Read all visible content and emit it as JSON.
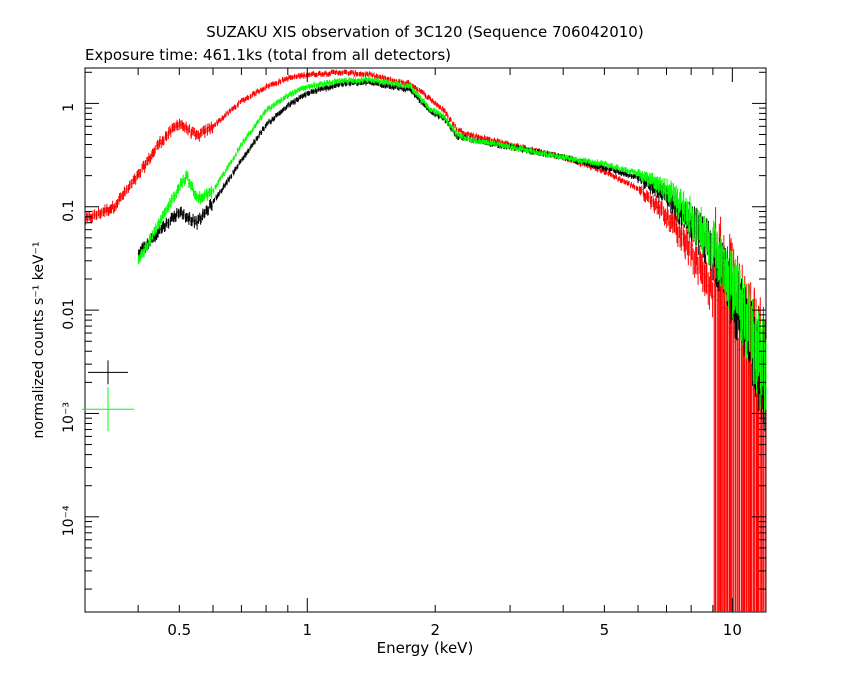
{
  "chart_data": {
    "type": "scatter",
    "title": "SUZAKU XIS observation of 3C120 (Sequence 706042010)",
    "subtitle": "Exposure time: 461.1ks (total from all detectors)",
    "xlabel": "Energy (keV)",
    "ylabel": "normalized counts s⁻¹ keV⁻¹",
    "x_scale": "log",
    "y_scale": "log",
    "xlim": [
      0.3,
      12
    ],
    "ylim": [
      1.2e-05,
      2.2
    ],
    "x_ticks": [
      0.5,
      1,
      2,
      5,
      10
    ],
    "x_tick_labels": [
      "0.5",
      "1",
      "2",
      "5",
      "10"
    ],
    "y_ticks": [
      0.0001,
      0.001,
      0.01,
      0.1,
      1
    ],
    "y_tick_labels": [
      "10⁻⁴",
      "10⁻³",
      "0.01",
      "0.1",
      "1"
    ],
    "grid": false,
    "legend": "error-bar markers at left",
    "series": [
      {
        "color": "#ff0000",
        "x": [
          0.3,
          0.35,
          0.4,
          0.45,
          0.5,
          0.55,
          0.6,
          0.7,
          0.8,
          0.9,
          1.0,
          1.2,
          1.4,
          1.6,
          1.75,
          1.85,
          1.95,
          2.1,
          2.25,
          2.4,
          3.0,
          4.0,
          5.0,
          6.0,
          7.0,
          8.0,
          9.0,
          10.0,
          11.0,
          12.0
        ],
        "y": [
          0.075,
          0.1,
          0.2,
          0.42,
          0.65,
          0.48,
          0.6,
          1.05,
          1.45,
          1.75,
          1.9,
          2.0,
          1.9,
          1.65,
          1.55,
          1.3,
          1.1,
          0.85,
          0.56,
          0.5,
          0.4,
          0.3,
          0.22,
          0.15,
          0.085,
          0.04,
          0.017,
          0.007,
          0.003,
          0.0015
        ]
      },
      {
        "color": "#000000",
        "x": [
          0.4,
          0.45,
          0.5,
          0.55,
          0.6,
          0.7,
          0.8,
          0.9,
          1.0,
          1.2,
          1.4,
          1.6,
          1.75,
          1.85,
          1.95,
          2.1,
          2.25,
          2.4,
          3.0,
          4.0,
          5.0,
          6.0,
          7.0,
          8.0,
          9.0,
          10.0,
          11.0,
          12.0
        ],
        "y": [
          0.035,
          0.06,
          0.09,
          0.07,
          0.11,
          0.28,
          0.62,
          0.95,
          1.25,
          1.55,
          1.6,
          1.45,
          1.35,
          1.05,
          0.82,
          0.72,
          0.48,
          0.45,
          0.38,
          0.3,
          0.24,
          0.19,
          0.13,
          0.075,
          0.04,
          0.016,
          0.007,
          0.003
        ]
      },
      {
        "color": "#00ff00",
        "x": [
          0.4,
          0.45,
          0.5,
          0.52,
          0.55,
          0.6,
          0.7,
          0.8,
          0.9,
          1.0,
          1.2,
          1.4,
          1.6,
          1.75,
          1.85,
          1.95,
          2.1,
          2.25,
          2.4,
          3.0,
          4.0,
          5.0,
          6.0,
          7.0,
          8.0,
          9.0,
          10.0,
          11.0,
          12.0
        ],
        "y": [
          0.03,
          0.07,
          0.16,
          0.2,
          0.12,
          0.14,
          0.4,
          0.85,
          1.2,
          1.45,
          1.65,
          1.7,
          1.55,
          1.45,
          1.1,
          0.88,
          0.75,
          0.5,
          0.45,
          0.38,
          0.3,
          0.26,
          0.21,
          0.15,
          0.085,
          0.045,
          0.02,
          0.009,
          0.003
        ]
      }
    ],
    "markers": [
      {
        "color": "#000000",
        "y": 0.0025
      },
      {
        "color": "#00ff00",
        "y": 0.0011
      }
    ]
  }
}
